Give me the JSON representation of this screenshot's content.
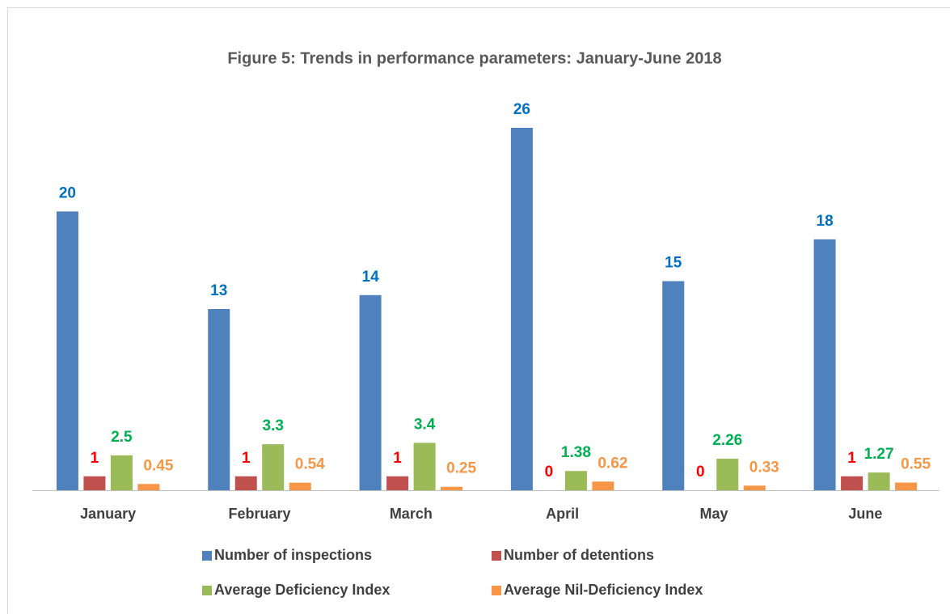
{
  "chart_data": {
    "type": "bar",
    "title": "Figure 5: Trends in performance parameters: January-June 2018",
    "categories": [
      "January",
      "February",
      "March",
      "April",
      "May",
      "June"
    ],
    "series": [
      {
        "name": "Number of inspections",
        "color": "#4f81bd",
        "label_color": "#0070c0",
        "values": [
          20,
          13,
          14,
          26,
          15,
          18
        ]
      },
      {
        "name": "Number of detentions",
        "color": "#c0504d",
        "label_color": "#ff0000",
        "values": [
          1,
          1,
          1,
          0,
          0,
          1
        ]
      },
      {
        "name": "Average Deficiency Index",
        "color": "#9bbb59",
        "label_color": "#00b050",
        "values": [
          2.5,
          3.3,
          3.4,
          1.38,
          2.26,
          1.27
        ]
      },
      {
        "name": "Average Nil-Deficiency Index",
        "color": "#f79646",
        "label_color": "#f79646",
        "values": [
          0.45,
          0.54,
          0.25,
          0.62,
          0.33,
          0.55
        ]
      }
    ],
    "legend": "bottom"
  }
}
